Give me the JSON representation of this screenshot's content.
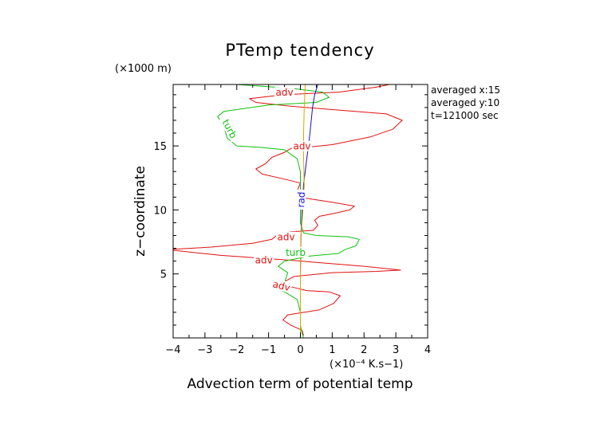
{
  "chart_data": {
    "type": "line",
    "title": "PTemp tendency",
    "xlabel": "Advection term of potential temp",
    "x_unit": "(×10⁻⁴ K.s−1)",
    "ylabel": "z−coordinate",
    "y_unit": "(×1000 m)",
    "xlim": [
      -4,
      4
    ],
    "ylim": [
      0,
      19.8
    ],
    "x_ticks": [
      "−4",
      "−3",
      "−2",
      "−1",
      "0",
      "1",
      "2",
      "3",
      "4"
    ],
    "y_ticks": [
      "5",
      "10",
      "15"
    ],
    "annotations": [
      "averaged  x:15",
      "averaged  y:10",
      "t=121000 sec"
    ],
    "grid": false,
    "series": [
      {
        "name": "adv",
        "color": "#e01010",
        "inline_labels": [
          "adv",
          "adv",
          "adv",
          "adv",
          "adv"
        ],
        "points": [
          [
            0.1,
            0.2
          ],
          [
            0.05,
            0.6
          ],
          [
            -0.3,
            1.0
          ],
          [
            -0.55,
            1.4
          ],
          [
            -0.4,
            1.8
          ],
          [
            0.1,
            2.0
          ],
          [
            0.6,
            2.2
          ],
          [
            1.05,
            2.7
          ],
          [
            1.25,
            3.3
          ],
          [
            0.9,
            3.6
          ],
          [
            0.2,
            3.7
          ],
          [
            -0.3,
            4.0
          ],
          [
            -0.5,
            4.4
          ],
          [
            -0.2,
            4.8
          ],
          [
            1.0,
            5.1
          ],
          [
            2.4,
            5.2
          ],
          [
            3.15,
            5.3
          ],
          [
            2.0,
            5.6
          ],
          [
            0.5,
            5.9
          ],
          [
            -0.5,
            6.1
          ],
          [
            -2.5,
            6.45
          ],
          [
            -4.2,
            6.9
          ],
          [
            -2.8,
            7.1
          ],
          [
            -1.5,
            7.4
          ],
          [
            -0.9,
            7.7
          ],
          [
            -0.7,
            8.1
          ],
          [
            -0.3,
            8.3
          ],
          [
            0.4,
            8.4
          ],
          [
            0.55,
            8.8
          ],
          [
            0.45,
            9.2
          ],
          [
            0.6,
            9.5
          ],
          [
            1.0,
            9.7
          ],
          [
            1.55,
            10.0
          ],
          [
            1.7,
            10.3
          ],
          [
            1.0,
            10.6
          ],
          [
            0.2,
            10.9
          ],
          [
            -0.1,
            11.5
          ],
          [
            0.0,
            12.1
          ],
          [
            -0.5,
            12.4
          ],
          [
            -1.2,
            12.8
          ],
          [
            -1.4,
            13.2
          ],
          [
            -1.1,
            13.6
          ],
          [
            -0.9,
            14.1
          ],
          [
            -0.5,
            14.5
          ],
          [
            -0.3,
            14.8
          ],
          [
            0.2,
            14.9
          ],
          [
            1.0,
            15.1
          ],
          [
            2.2,
            15.7
          ],
          [
            2.9,
            16.3
          ],
          [
            3.2,
            17.0
          ],
          [
            2.7,
            17.5
          ],
          [
            1.2,
            17.8
          ],
          [
            -0.3,
            18.1
          ],
          [
            -1.4,
            18.4
          ],
          [
            -1.6,
            18.7
          ],
          [
            -0.5,
            19.0
          ],
          [
            1.2,
            19.2
          ],
          [
            2.4,
            19.6
          ],
          [
            2.8,
            19.8
          ]
        ]
      },
      {
        "name": "turb",
        "color": "#10c010",
        "inline_labels": [
          "turb",
          "turb"
        ],
        "points": [
          [
            0.1,
            0.0
          ],
          [
            0.05,
            0.4
          ],
          [
            0.0,
            1.0
          ],
          [
            0.0,
            2.0
          ],
          [
            -0.1,
            3.0
          ],
          [
            -0.5,
            3.6
          ],
          [
            -0.8,
            3.9
          ],
          [
            -0.5,
            4.3
          ],
          [
            -0.45,
            4.7
          ],
          [
            -0.4,
            5.1
          ],
          [
            -0.7,
            5.6
          ],
          [
            -0.5,
            6.0
          ],
          [
            0.3,
            6.4
          ],
          [
            1.2,
            6.6
          ],
          [
            1.4,
            6.9
          ],
          [
            1.75,
            7.2
          ],
          [
            1.85,
            7.7
          ],
          [
            1.5,
            7.9
          ],
          [
            0.5,
            8.0
          ],
          [
            0.1,
            8.2
          ],
          [
            0.0,
            9.0
          ],
          [
            0.0,
            10.0
          ],
          [
            0.0,
            11.0
          ],
          [
            0.0,
            12.0
          ],
          [
            0.0,
            13.0
          ],
          [
            -0.1,
            14.0
          ],
          [
            -0.5,
            14.7
          ],
          [
            -1.3,
            14.9
          ],
          [
            -2.0,
            15.0
          ],
          [
            -2.3,
            15.6
          ],
          [
            -2.4,
            16.5
          ],
          [
            -2.6,
            17.3
          ],
          [
            -2.4,
            17.7
          ],
          [
            -1.0,
            18.2
          ],
          [
            0.5,
            18.4
          ],
          [
            0.9,
            18.8
          ],
          [
            0.7,
            19.2
          ],
          [
            -0.3,
            19.5
          ],
          [
            -2.0,
            19.8
          ]
        ]
      },
      {
        "name": "rad",
        "color": "#1010d0",
        "inline_labels": [
          "rad"
        ],
        "points": [
          [
            0.0,
            0.0
          ],
          [
            0.0,
            2.0
          ],
          [
            0.0,
            5.0
          ],
          [
            0.02,
            8.0
          ],
          [
            0.05,
            10.0
          ],
          [
            0.1,
            12.0
          ],
          [
            0.2,
            14.0
          ],
          [
            0.3,
            16.0
          ],
          [
            0.38,
            18.0
          ],
          [
            0.45,
            19.0
          ],
          [
            0.55,
            19.8
          ]
        ]
      },
      {
        "name": "",
        "color": "#e8a000",
        "inline_labels": [],
        "points": [
          [
            0.0,
            0.0
          ],
          [
            0.0,
            5.0
          ],
          [
            0.02,
            8.0
          ],
          [
            0.08,
            10.0
          ],
          [
            0.12,
            12.0
          ],
          [
            0.1,
            14.0
          ],
          [
            0.1,
            16.0
          ],
          [
            0.12,
            18.0
          ],
          [
            0.15,
            19.8
          ]
        ]
      }
    ]
  }
}
